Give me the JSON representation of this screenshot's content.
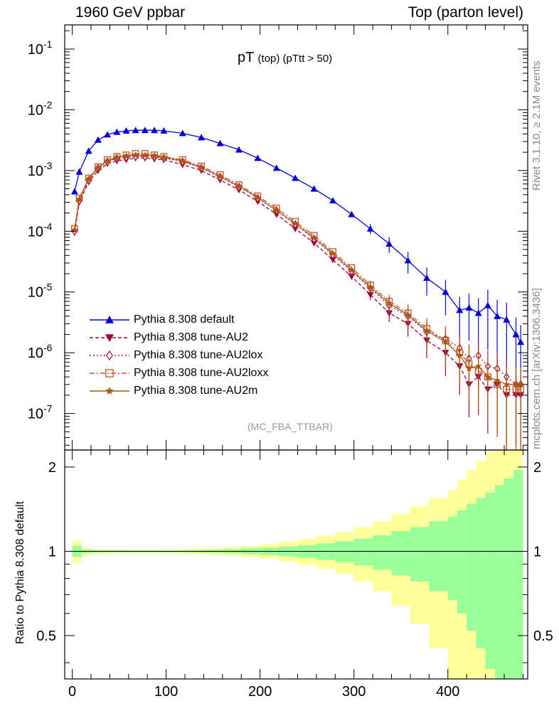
{
  "header": {
    "left": "1960 GeV ppbar",
    "right": "Top (parton level)"
  },
  "side_labels": {
    "rivet": "Rivet 3.1.10, ≥ 2.1M events",
    "mcplots": "mcplots.cern.ch [arXiv:1306.3436]"
  },
  "plot_title": {
    "main": "pT",
    "sub": "(top) (pTtt > 50)"
  },
  "analysis_label": "(MC_FBA_TTBAR)",
  "ratio_ylabel": "Ratio to Pythia 8.308 default",
  "legend": [
    {
      "label": "Pythia 8.308 default",
      "color": "#0000dd",
      "marker": "triangle-up",
      "line": "solid"
    },
    {
      "label": "Pythia 8.308 tune-AU2",
      "color": "#a0003c",
      "marker": "triangle-down",
      "line": "dashed"
    },
    {
      "label": "Pythia 8.308 tune-AU2lox",
      "color": "#b01e44",
      "marker": "diamond",
      "line": "dotted"
    },
    {
      "label": "Pythia 8.308 tune-AU2loxx",
      "color": "#c8502a",
      "marker": "square",
      "line": "dashdot"
    },
    {
      "label": "Pythia 8.308 tune-AU2m",
      "color": "#a85a10",
      "marker": "star",
      "line": "solid"
    }
  ],
  "chart_data": [
    {
      "type": "line",
      "scale": "log",
      "x": [
        2.5,
        7.5,
        17.5,
        27.5,
        37.5,
        47.5,
        57.5,
        67.5,
        77.5,
        87.5,
        97.5,
        117.5,
        137.5,
        157.5,
        177.5,
        197.5,
        217.5,
        237.5,
        257.5,
        277.5,
        297.5,
        317.5,
        337.5,
        357.5,
        377.5,
        397.5,
        412.5,
        422.5,
        432.5,
        442.5,
        452.5,
        462.5,
        472.5,
        477.5
      ],
      "ylim": [
        2.5e-08,
        0.25
      ],
      "xlim": [
        -8,
        485
      ],
      "yticks": [
        "10^-7",
        "10^-6",
        "10^-5",
        "10^-4",
        "10^-3",
        "10^-2",
        "10^-1"
      ],
      "series": [
        {
          "name": "Pythia 8.308 default",
          "values": [
            0.00045,
            0.00095,
            0.0021,
            0.0032,
            0.0039,
            0.0043,
            0.0045,
            0.0046,
            0.0046,
            0.0046,
            0.0045,
            0.0041,
            0.0035,
            0.0028,
            0.0022,
            0.0016,
            0.0011,
            0.00075,
            0.0005,
            0.00032,
            0.00019,
            0.00011,
            6.2e-05,
            3.3e-05,
            1.7e-05,
            1e-05,
            5e-06,
            5.5e-06,
            4.5e-06,
            6e-06,
            4e-06,
            3.5e-06,
            2e-06,
            1.5e-06
          ]
        },
        {
          "name": "Pythia 8.308 tune-AU2",
          "values": [
            9.5e-05,
            0.0003,
            0.00065,
            0.001,
            0.0013,
            0.00145,
            0.0015,
            0.0016,
            0.0016,
            0.00155,
            0.0015,
            0.00125,
            0.001,
            0.0007,
            0.00048,
            0.00031,
            0.00019,
            0.00011,
            6.4e-05,
            3.4e-05,
            1.8e-05,
            9e-06,
            4.5e-06,
            3e-06,
            1.6e-06,
            1e-06,
            6e-07,
            3e-07,
            4e-07,
            2.5e-07,
            3e-07,
            2e-07,
            2e-07,
            2e-07
          ]
        },
        {
          "name": "Pythia 8.308 tune-AU2lox",
          "values": [
            0.0001,
            0.00032,
            0.0007,
            0.0011,
            0.0014,
            0.0016,
            0.00165,
            0.0017,
            0.0017,
            0.00168,
            0.0016,
            0.0014,
            0.0011,
            0.00078,
            0.00054,
            0.00035,
            0.00022,
            0.00013,
            7.5e-05,
            4.1e-05,
            2.2e-05,
            1.15e-05,
            6e-06,
            4e-06,
            2.2e-06,
            1.7e-06,
            1.2e-06,
            8e-07,
            9e-07,
            6e-07,
            5.5e-07,
            4e-07,
            3e-07,
            3e-07
          ]
        },
        {
          "name": "Pythia 8.308 tune-AU2loxx",
          "values": [
            0.00011,
            0.00035,
            0.00075,
            0.00115,
            0.0015,
            0.0017,
            0.0018,
            0.0019,
            0.0019,
            0.0018,
            0.0017,
            0.0015,
            0.00118,
            0.00085,
            0.00058,
            0.00038,
            0.00024,
            0.000145,
            8.5e-05,
            4.6e-05,
            2.5e-05,
            1.3e-05,
            7e-06,
            4.5e-06,
            2.5e-06,
            1.6e-06,
            1e-06,
            6.5e-07,
            5e-07,
            4e-07,
            3e-07,
            2.5e-07,
            2.5e-07,
            2.5e-07
          ]
        },
        {
          "name": "Pythia 8.308 tune-AU2m",
          "values": [
            0.000105,
            0.00034,
            0.00073,
            0.00112,
            0.00145,
            0.00165,
            0.00175,
            0.0018,
            0.0018,
            0.00175,
            0.00165,
            0.00145,
            0.00112,
            0.0008,
            0.00055,
            0.00036,
            0.00022,
            0.000135,
            7.8e-05,
            4.3e-05,
            2.3e-05,
            1.2e-05,
            6.5e-06,
            4.2e-06,
            2.3e-06,
            1.5e-06,
            9e-07,
            5.5e-07,
            6e-07,
            4e-07,
            3.5e-07,
            3e-07,
            3e-07,
            3e-07
          ]
        }
      ]
    },
    {
      "type": "area",
      "scale": "log",
      "ylabel": "Ratio to Pythia 8.308 default",
      "ylim": [
        0.35,
        2.3
      ],
      "xlim": [
        -8,
        485
      ],
      "yticks": [
        0.5,
        1,
        2
      ],
      "xticks": [
        0,
        100,
        200,
        300,
        400
      ],
      "reference": 1,
      "x_edges": [
        0,
        10,
        20,
        40,
        60,
        80,
        100,
        120,
        140,
        160,
        180,
        200,
        220,
        240,
        260,
        280,
        300,
        320,
        340,
        360,
        380,
        400,
        410,
        420,
        430,
        440,
        450,
        460,
        470,
        480
      ],
      "bands": [
        {
          "name": "stat",
          "color": "#99ff99",
          "half_width_pct": [
            4.5,
            1.5,
            1.0,
            0.8,
            0.7,
            0.7,
            0.8,
            1.0,
            1.3,
            1.7,
            2.3,
            3.0,
            4.0,
            5.2,
            6.8,
            8.5,
            11,
            14,
            18,
            22,
            28,
            33,
            40,
            48,
            55,
            62,
            72,
            82,
            95
          ]
        },
        {
          "name": "syst",
          "color": "#ffff99",
          "half_width_pct": [
            9.0,
            3.0,
            1.8,
            1.5,
            1.4,
            1.4,
            1.6,
            2.0,
            2.6,
            3.4,
            4.5,
            6.0,
            8.0,
            10.5,
            13.5,
            17,
            22,
            28,
            36,
            45,
            55,
            66,
            80,
            95,
            110,
            125,
            140,
            160,
            180
          ]
        }
      ]
    }
  ]
}
